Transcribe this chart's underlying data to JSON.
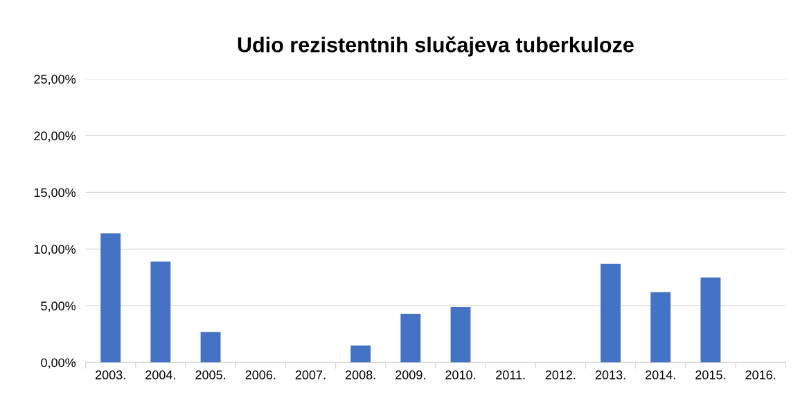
{
  "chart_data": {
    "type": "bar",
    "title": "Udio rezistentnih slučajeva tuberkuloze",
    "categories": [
      "2003.",
      "2004.",
      "2005.",
      "2006.",
      "2007.",
      "2008.",
      "2009.",
      "2010.",
      "2011.",
      "2012.",
      "2013.",
      "2014.",
      "2015.",
      "2016."
    ],
    "values": [
      11.4,
      8.9,
      2.7,
      0,
      0,
      1.5,
      4.3,
      4.9,
      0,
      0,
      8.7,
      6.2,
      7.5,
      0
    ],
    "color": "#4472c4",
    "ylim": [
      0,
      25
    ],
    "yticks": [
      {
        "value": 0,
        "label": "0,00%"
      },
      {
        "value": 5,
        "label": "5,00%"
      },
      {
        "value": 10,
        "label": "10,00%"
      },
      {
        "value": 15,
        "label": "15,00%"
      },
      {
        "value": 20,
        "label": "20,00%"
      },
      {
        "value": 25,
        "label": "25,00%"
      }
    ],
    "grid": "y"
  }
}
